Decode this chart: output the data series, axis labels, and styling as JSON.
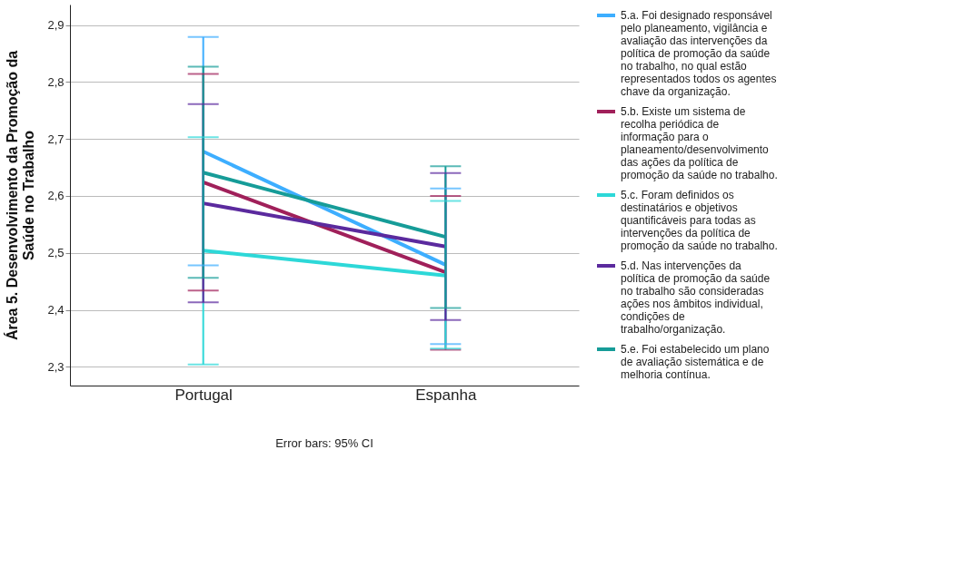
{
  "chart_data": {
    "type": "line",
    "ylabel": "Área 5. Desenvolvimento da Promoção da Saúde no Trabalho",
    "categories": [
      "Portugal",
      "Espanha"
    ],
    "ylim": [
      2.267,
      2.936
    ],
    "yticks": [
      {
        "value": 2.3,
        "label": "2,3"
      },
      {
        "value": 2.4,
        "label": "2,4"
      },
      {
        "value": 2.5,
        "label": "2,5"
      },
      {
        "value": 2.6,
        "label": "2,6"
      },
      {
        "value": 2.7,
        "label": "2,7"
      },
      {
        "value": 2.8,
        "label": "2,8"
      },
      {
        "value": 2.9,
        "label": "2,9"
      }
    ],
    "grid": "y",
    "legend": "right",
    "marker": "none",
    "line_style": "solid",
    "series": [
      {
        "name": "5.a. Foi designado responsável pelo planeamento, vigilância e avaliação das intervenções da política de promoção da saúde no trabalho, no qual estão representados todos os agentes chave da organização.",
        "color": "#3daeff",
        "values": [
          2.678,
          2.479
        ],
        "errors": [
          [
            2.478,
            2.879
          ],
          [
            2.34,
            2.613
          ]
        ]
      },
      {
        "name": "5.b. Existe um sistema de recolha periódica de informação para o planeamento/desenvolvimento das ações da política de promoção da saúde no trabalho.",
        "color": "#a0205a",
        "values": [
          2.624,
          2.466
        ],
        "errors": [
          [
            2.434,
            2.814
          ],
          [
            2.33,
            2.6
          ]
        ]
      },
      {
        "name": "5.c. Foram definidos os destinatários e objetivos quantificáveis para todas as intervenções da política de promoção da saúde no trabalho.",
        "color": "#2dd8d8",
        "values": [
          2.504,
          2.46
        ],
        "errors": [
          [
            2.304,
            2.703
          ],
          [
            2.332,
            2.591
          ]
        ]
      },
      {
        "name": "5.d. Nas intervenções da política de promoção da saúde no trabalho são consideradas ações nos âmbitos individual, condições de trabalho/organização.",
        "color": "#5b2a9e",
        "values": [
          2.587,
          2.511
        ],
        "errors": [
          [
            2.413,
            2.761
          ],
          [
            2.382,
            2.64
          ]
        ]
      },
      {
        "name": "5.e. Foi estabelecido um plano de avaliação sistemática e de melhoria contínua.",
        "color": "#169c98",
        "values": [
          2.641,
          2.528
        ],
        "errors": [
          [
            2.456,
            2.827
          ],
          [
            2.403,
            2.652
          ]
        ]
      }
    ],
    "annotations": [
      "Error bars: 95% CI"
    ]
  }
}
